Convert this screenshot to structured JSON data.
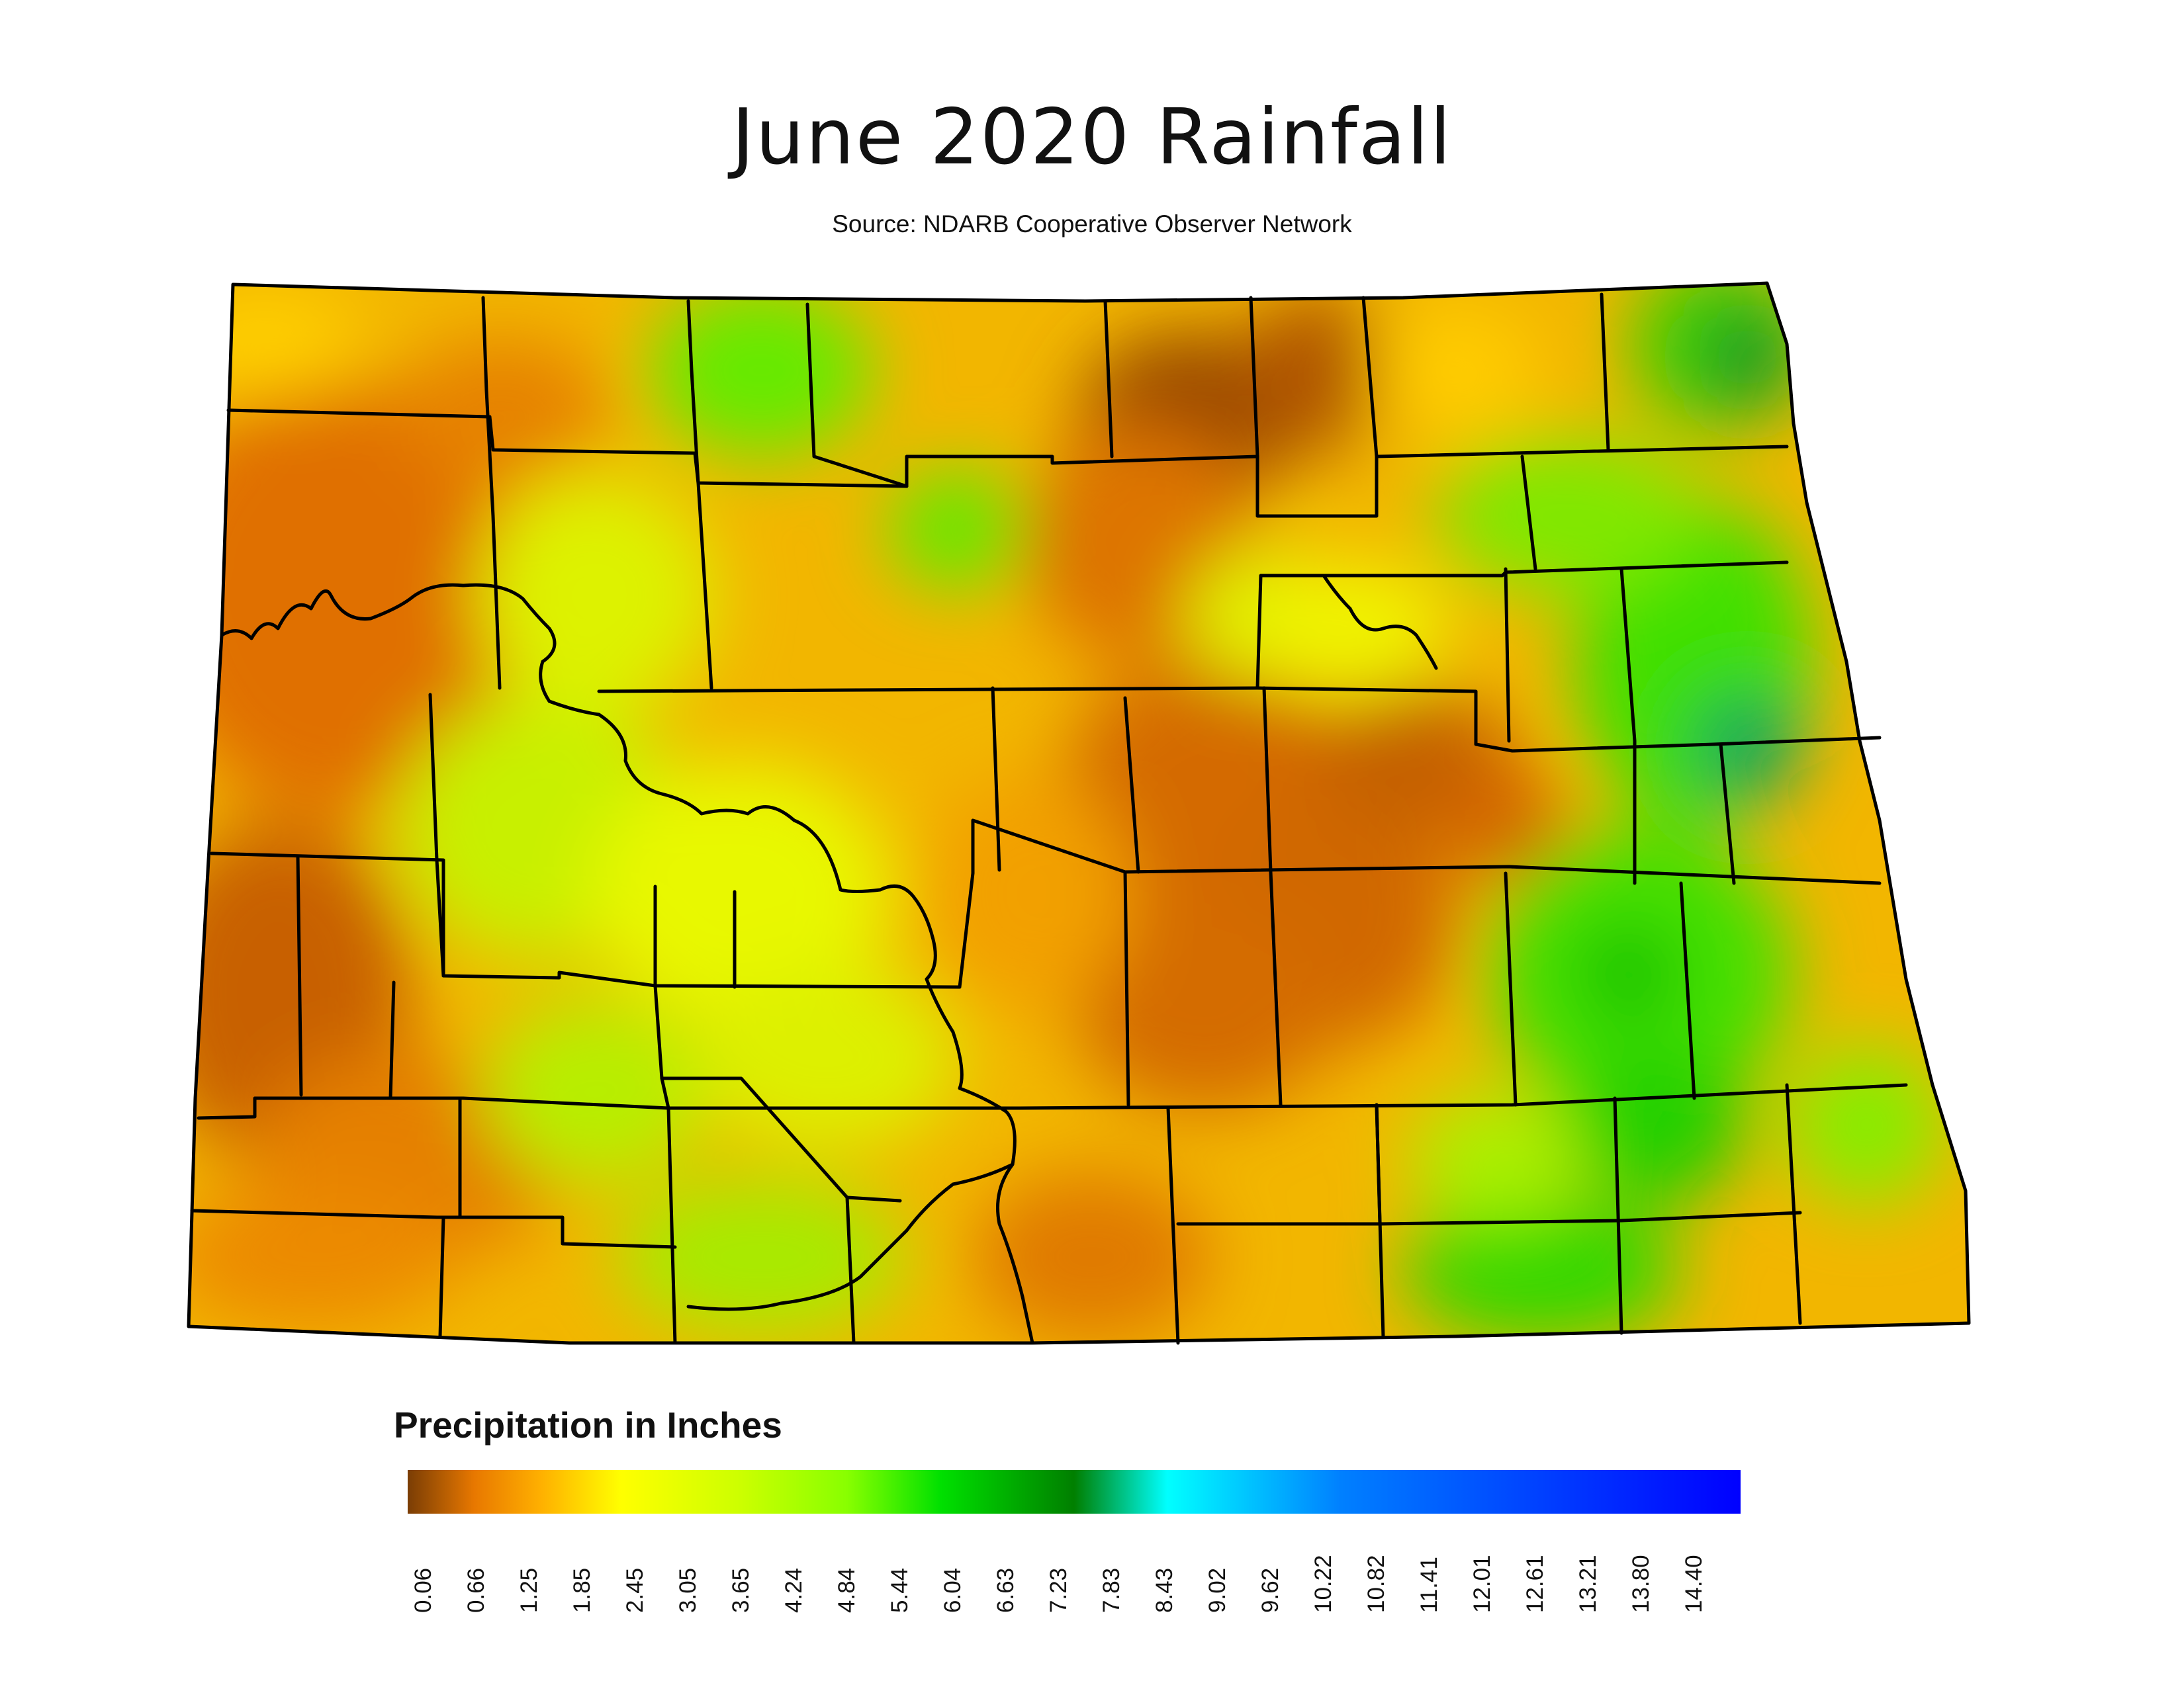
{
  "title": "June 2020 Rainfall",
  "subtitle": "Source: NDARB Cooperative Observer Network",
  "legend": {
    "title": "Precipitation in Inches",
    "ticks": [
      "0.06",
      "0.66",
      "1.25",
      "1.85",
      "2.45",
      "3.05",
      "3.65",
      "4.24",
      "4.84",
      "5.44",
      "6.04",
      "6.63",
      "7.23",
      "7.83",
      "8.43",
      "9.02",
      "9.62",
      "10.22",
      "10.82",
      "11.41",
      "12.01",
      "12.61",
      "13.21",
      "13.80",
      "14.40"
    ],
    "colors": [
      "#7a3d05",
      "#e87800",
      "#ffb000",
      "#ffff00",
      "#ccff00",
      "#99ff00",
      "#00e000",
      "#007f00",
      "#00ffff",
      "#0080ff",
      "#0000ff"
    ]
  },
  "colors": {
    "background": "#ffffff",
    "boundary": "#000000",
    "dry": "#e87800",
    "wet": "#00c000"
  }
}
